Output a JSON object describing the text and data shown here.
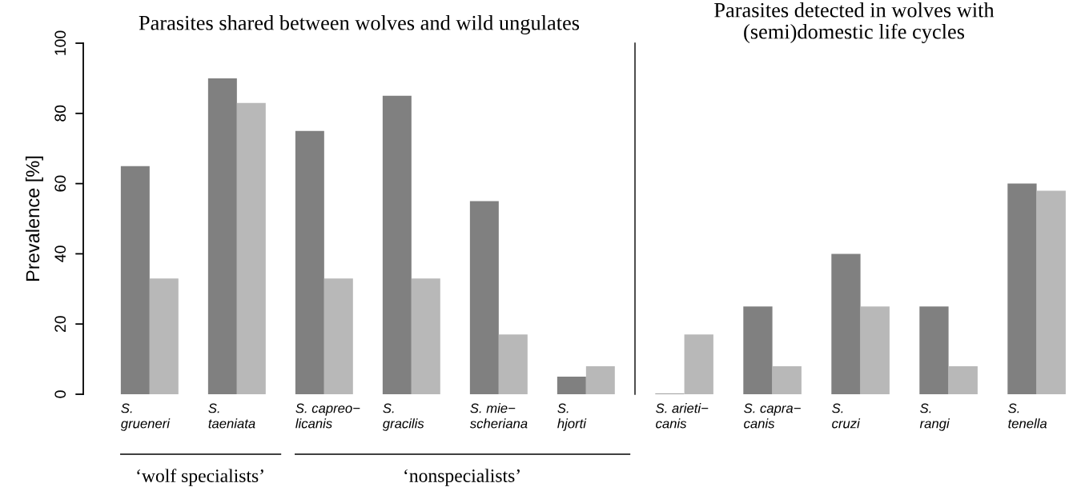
{
  "chart_data": [
    {
      "type": "bar",
      "title": "Parasites shared between wolves and wild ungulates",
      "ylabel": "Prevalence [%]",
      "categories": [
        "S.\ngrueneri",
        "S.\ntaeniata",
        "S. capreo−\nlicanis",
        "S.\ngracilis",
        "S. mie−\nscheriana",
        "S.\nhjorti"
      ],
      "series": [
        {
          "color": "#808080",
          "values": [
            65,
            90,
            75,
            85,
            55,
            5
          ]
        },
        {
          "color": "#b8b8b8",
          "values": [
            33,
            83,
            33,
            33,
            17,
            8
          ]
        }
      ],
      "ylim": [
        0,
        100
      ],
      "yticks": [
        0,
        20,
        40,
        60,
        80,
        100
      ],
      "grid": false,
      "legend": false,
      "annotations": [
        "‘wolf specialists’",
        "‘nonspecialists’"
      ]
    },
    {
      "type": "bar",
      "title": "Parasites detected in wolves with\n(semi)domestic life cycles",
      "categories": [
        "S. arieti−\ncanis",
        "S. capra−\ncanis",
        "S.\ncruzi",
        "S.\nrangi",
        "S.\ntenella"
      ],
      "series": [
        {
          "color": "#808080",
          "values": [
            0,
            25,
            40,
            25,
            60
          ]
        },
        {
          "color": "#b8b8b8",
          "values": [
            17,
            8,
            25,
            8,
            58
          ]
        }
      ],
      "ylim": [
        0,
        100
      ],
      "tick_labels": "x",
      "grid": false,
      "legend": false
    }
  ]
}
